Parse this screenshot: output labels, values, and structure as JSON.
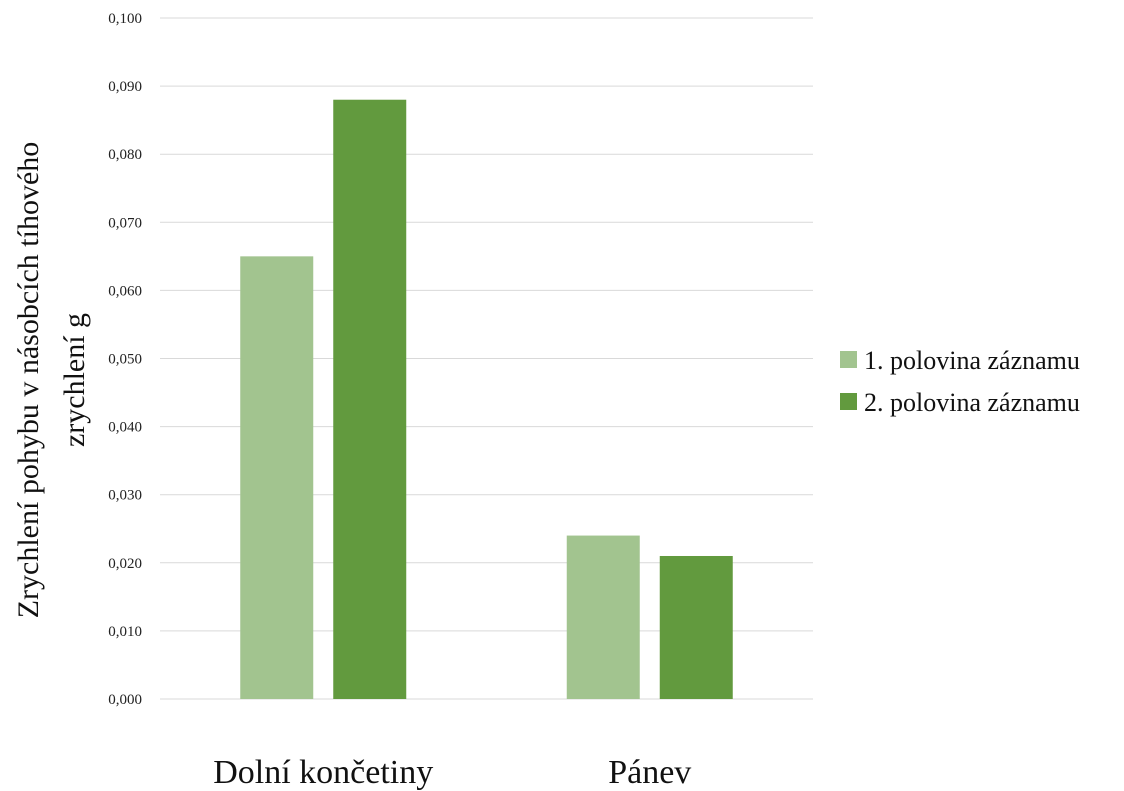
{
  "chart_data": {
    "type": "bar",
    "categories": [
      "Dolní končetiny",
      "Pánev"
    ],
    "series": [
      {
        "name": "1. polovina záznamu",
        "values": [
          0.065,
          0.024
        ],
        "color": "#a2c48f"
      },
      {
        "name": "2. polovina záznamu",
        "values": [
          0.088,
          0.021
        ],
        "color": "#629a3e"
      }
    ],
    "ylabel_lines": [
      "Zrychlení pohybu v násobcích tíhového",
      "zrychlení g"
    ],
    "ylim": [
      0,
      0.1
    ],
    "yticks": [
      "0,000",
      "0,010",
      "0,020",
      "0,030",
      "0,040",
      "0,050",
      "0,060",
      "0,070",
      "0,080",
      "0,090",
      "0,100"
    ],
    "grid": true,
    "legend_position": "right"
  }
}
